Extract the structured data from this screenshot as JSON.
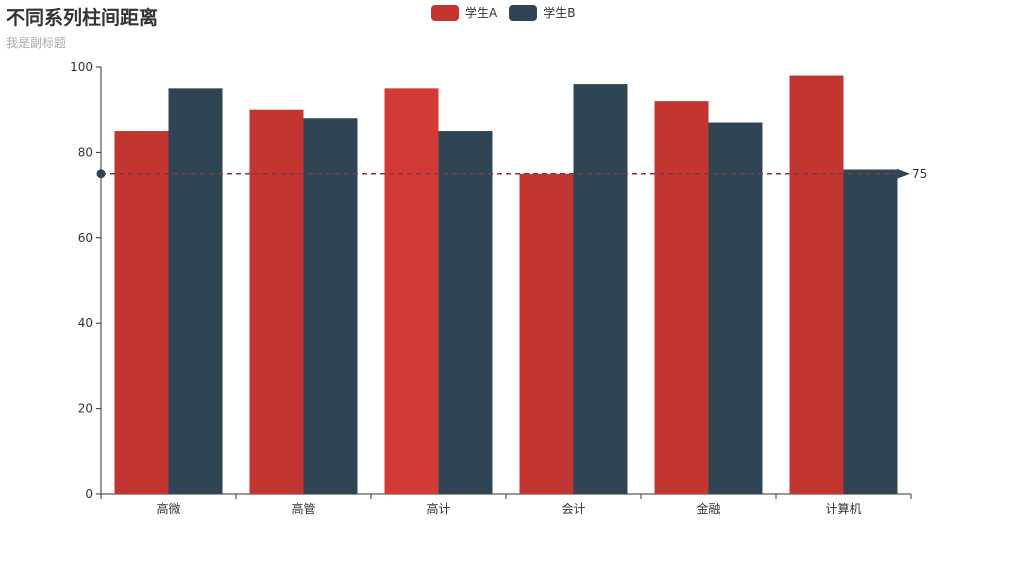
{
  "chart_data": {
    "type": "bar",
    "title": "不同系列柱间距离",
    "subtitle": "我是副标题",
    "categories": [
      "高微",
      "高管",
      "高计",
      "会计",
      "金融",
      "计算机"
    ],
    "series": [
      {
        "name": "学生A",
        "values": [
          85,
          90,
          95,
          75,
          92,
          98
        ],
        "color": "#c23531"
      },
      {
        "name": "学生B",
        "values": [
          95,
          88,
          85,
          96,
          87,
          76
        ],
        "color": "#2f4554"
      }
    ],
    "highlight": {
      "series": 0,
      "index": 2,
      "color": "#d43a35"
    },
    "ylim": [
      0,
      100
    ],
    "yticks": [
      0,
      20,
      40,
      60,
      80,
      100
    ],
    "mark_line": {
      "value": 75,
      "label": "75",
      "color": "#7b3b44"
    },
    "legend_position": "top-center",
    "grid": false
  }
}
